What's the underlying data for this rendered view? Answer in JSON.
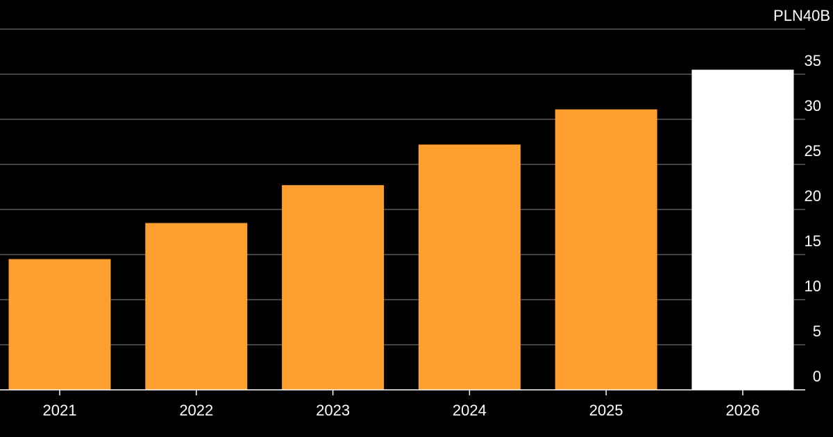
{
  "chart_data": {
    "type": "bar",
    "categories": [
      "2021",
      "2022",
      "2023",
      "2024",
      "2025",
      "2026"
    ],
    "values": [
      14.5,
      18.5,
      22.7,
      27.2,
      31.1,
      35.5
    ],
    "bar_colors": [
      "#ff9f2f",
      "#ff9f2f",
      "#ff9f2f",
      "#ff9f2f",
      "#ff9f2f",
      "#ffffff"
    ],
    "ylim": [
      0,
      40
    ],
    "y_ticks": [
      0,
      5,
      10,
      15,
      20,
      25,
      30,
      35,
      40
    ],
    "y_tick_labels": [
      "0",
      "5",
      "10",
      "15",
      "20",
      "25",
      "30",
      "35",
      "PLN40B"
    ],
    "grid": true,
    "grid_color": "#5a5a5a",
    "axis_side": "right",
    "background": "#000000",
    "text_color": "#ffffff"
  }
}
